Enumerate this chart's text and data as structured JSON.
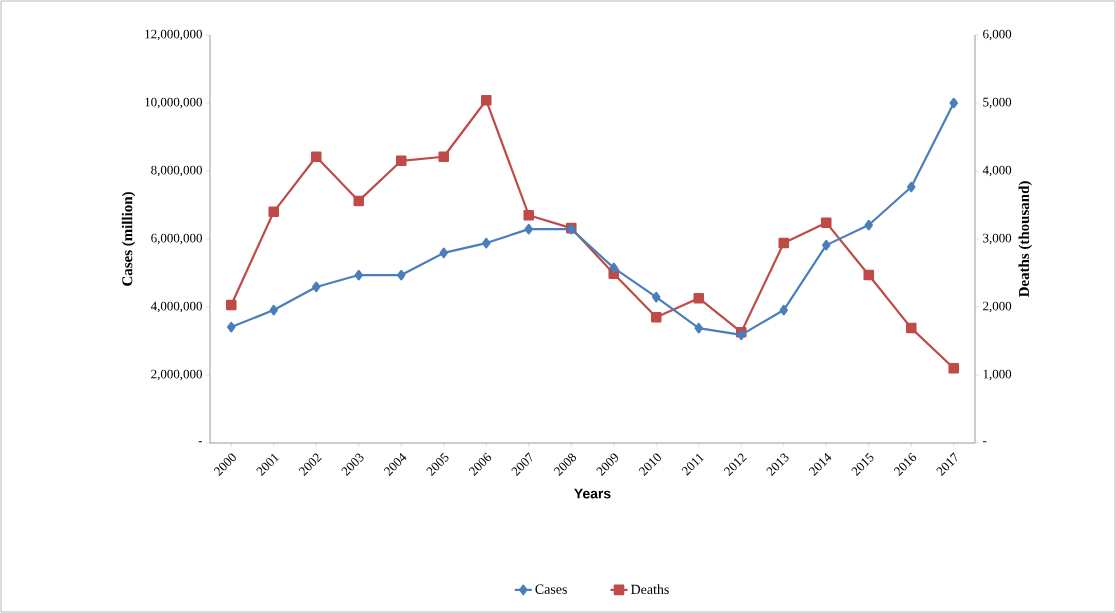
{
  "chart_data": {
    "type": "line",
    "xlabel": "Years",
    "ylabel": "Cases (million)",
    "y2label": "Deaths (thousand)",
    "categories": [
      "2000",
      "2001",
      "2002",
      "2003",
      "2004",
      "2005",
      "2006",
      "2007",
      "2008",
      "2009",
      "2010",
      "2011",
      "2012",
      "2013",
      "2014",
      "2015",
      "2016",
      "2017"
    ],
    "series": [
      {
        "name": "Cases",
        "color": "#4a7ebb",
        "marker": "diamond",
        "values": [
          3410000,
          3910000,
          4590000,
          4940000,
          4940000,
          5590000,
          5880000,
          6290000,
          6290000,
          5150000,
          4290000,
          3380000,
          3180000,
          3910000,
          5820000,
          6410000,
          7530000,
          10000000
        ]
      },
      {
        "name": "Deaths",
        "color": "#be4b48",
        "marker": "square",
        "axis": "y2",
        "values": [
          2030,
          3400,
          4210,
          3560,
          4150,
          4210,
          5040,
          3350,
          3160,
          2490,
          1850,
          2130,
          1630,
          2940,
          3240,
          2470,
          1690,
          1100
        ]
      }
    ],
    "ylim": [
      0,
      12000000
    ],
    "yticks": [
      {
        "value": 0,
        "label": "-"
      },
      {
        "value": 2000000,
        "label": "2,000,000"
      },
      {
        "value": 4000000,
        "label": "4,000,000"
      },
      {
        "value": 6000000,
        "label": "6,000,000"
      },
      {
        "value": 8000000,
        "label": "8,000,000"
      },
      {
        "value": 10000000,
        "label": "10,000,000"
      },
      {
        "value": 12000000,
        "label": "12,000,000"
      }
    ],
    "y2lim": [
      0,
      6000
    ],
    "y2ticks": [
      {
        "value": 0,
        "label": "-"
      },
      {
        "value": 1000,
        "label": "1,000"
      },
      {
        "value": 2000,
        "label": "2,000"
      },
      {
        "value": 3000,
        "label": "3,000"
      },
      {
        "value": 4000,
        "label": "4,000"
      },
      {
        "value": 5000,
        "label": "5,000"
      },
      {
        "value": 6000,
        "label": "6,000"
      }
    ],
    "legend": "bottom",
    "line_style": "solid"
  }
}
